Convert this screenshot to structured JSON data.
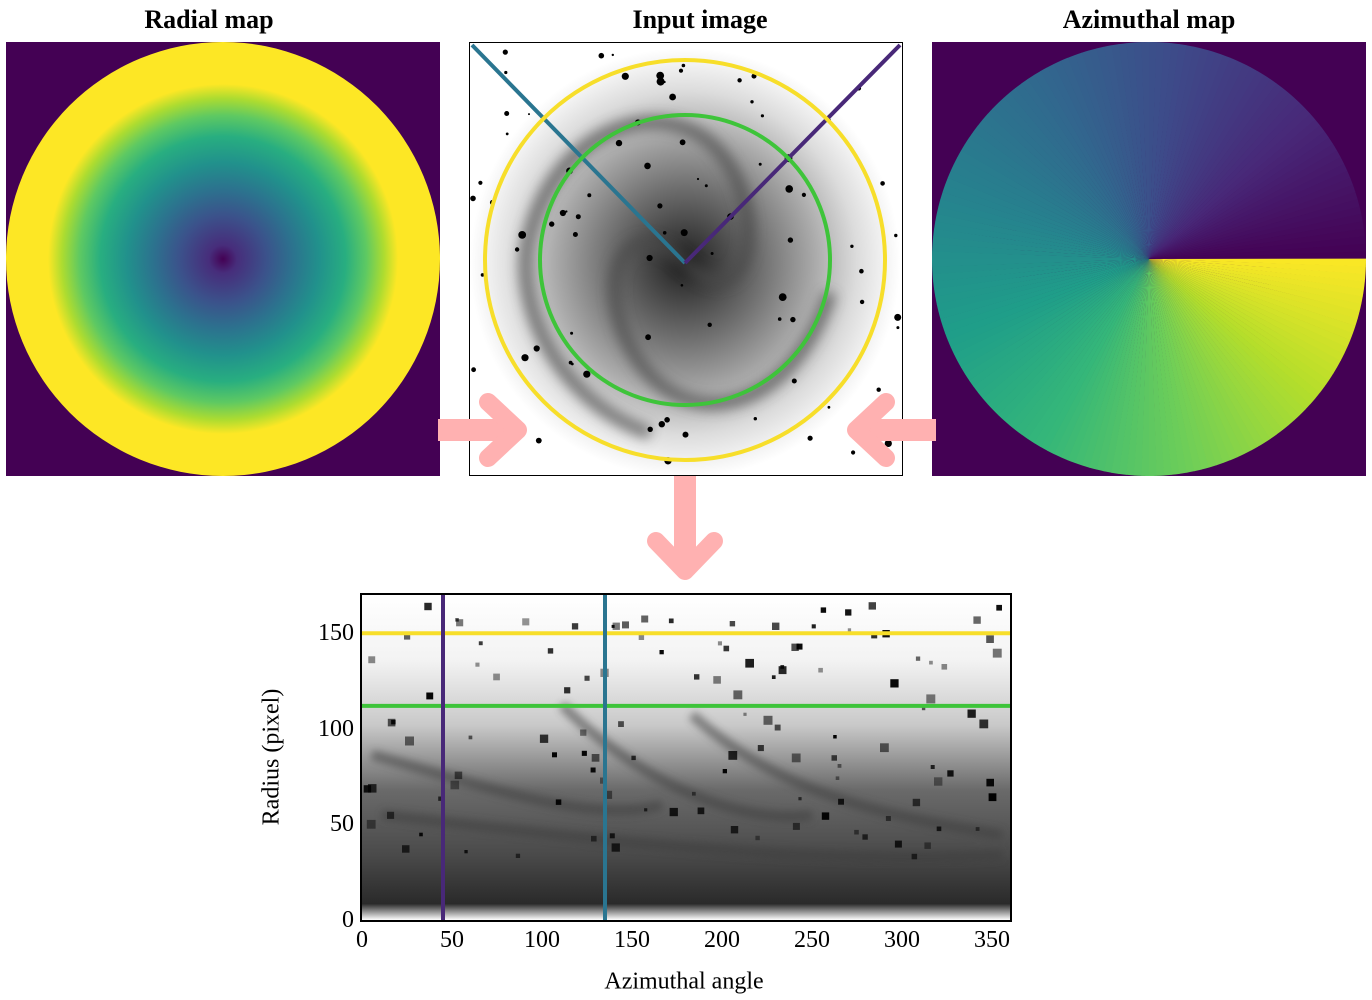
{
  "panels": {
    "radial": {
      "title": "Radial map"
    },
    "input": {
      "title": "Input image"
    },
    "azimuthal": {
      "title": "Azimuthal map"
    }
  },
  "colors": {
    "viridis_dark": "#440154",
    "viridis_yellow": "#fde725",
    "ring_outer": "#f7de2a",
    "ring_inner": "#3ec43a",
    "line_purple": "#482878",
    "line_teal": "#2a7590",
    "arrow": "#ffb1b1"
  },
  "chart_data": {
    "type": "heatmap",
    "xlabel": "Azimuthal angle",
    "ylabel": "Radius (pixel)",
    "xlim": [
      0,
      360
    ],
    "ylim": [
      0,
      170
    ],
    "xticks": [
      0,
      50,
      100,
      150,
      200,
      250,
      300,
      350
    ],
    "yticks": [
      0,
      50,
      100,
      150
    ],
    "hlines": [
      {
        "y": 150,
        "color": "#f7de2a"
      },
      {
        "y": 112,
        "color": "#3ec43a"
      }
    ],
    "vlines": [
      {
        "x": 45,
        "color": "#482878"
      },
      {
        "x": 135,
        "color": "#2a7590"
      }
    ]
  }
}
